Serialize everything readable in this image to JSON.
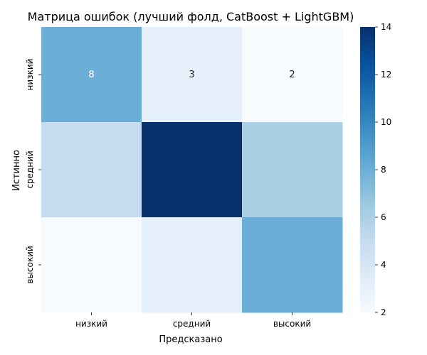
{
  "chart_data": {
    "type": "heatmap",
    "title": "Матрица ошибок (лучший фолд, CatBoost + LightGBM)",
    "xlabel": "Предсказано",
    "ylabel": "Истинно",
    "x_categories": [
      "низкий",
      "средний",
      "высокий"
    ],
    "y_categories": [
      "низкий",
      "средний",
      "высокий"
    ],
    "values": [
      [
        8,
        3,
        2
      ],
      [
        5,
        14,
        6
      ],
      [
        2,
        3,
        8
      ]
    ],
    "annotated_row": 0,
    "colorbar": {
      "min": 2,
      "max": 14,
      "ticks": [
        "2",
        "4",
        "6",
        "8",
        "10",
        "12",
        "14"
      ],
      "colormap": "Blues"
    }
  }
}
